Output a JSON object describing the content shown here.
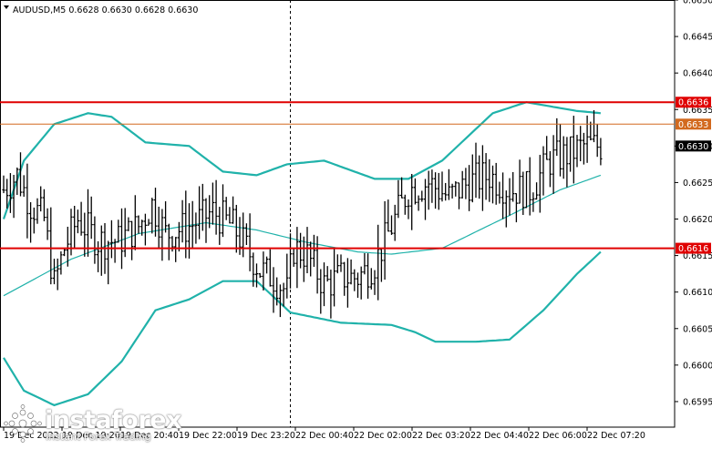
{
  "chart_data": {
    "type": "candlestick",
    "symbol_label": "AUDUSD,M5  0.6628 0.6630 0.6628 0.6630",
    "ylim": [
      0.65915,
      0.665
    ],
    "yticks": [
      "0.6650",
      "0.6645",
      "0.6640",
      "0.6635",
      "0.6630",
      "0.6625",
      "0.6620",
      "0.6615",
      "0.6610",
      "0.6605",
      "0.6600",
      "0.6595"
    ],
    "xticks": [
      "19 Dec 2022",
      "19 Dec 19:20",
      "19 Dec 20:40",
      "19 Dec 22:00",
      "19 Dec 23:20",
      "22 Dec 00:40",
      "22 Dec 02:00",
      "22 Dec 03:20",
      "22 Dec 04:40",
      "22 Dec 06:00",
      "22 Dec 07:20"
    ],
    "horizontal_levels": [
      {
        "value": 0.6636,
        "label": "0.6636",
        "color": "#e00000"
      },
      {
        "value": 0.6633,
        "label": "0.6633",
        "color": "#d2691e"
      },
      {
        "value": 0.6616,
        "label": "0.6616",
        "color": "#e00000"
      }
    ],
    "current_price": {
      "value": 0.663,
      "label": "0.6630"
    },
    "session_separator_bar": 85,
    "bars_count": 178,
    "price_path": [
      [
        0,
        0.6624
      ],
      [
        4,
        0.6626
      ],
      [
        8,
        0.6622
      ],
      [
        12,
        0.662
      ],
      [
        15,
        0.6611
      ],
      [
        18,
        0.6616
      ],
      [
        22,
        0.662
      ],
      [
        28,
        0.6617
      ],
      [
        34,
        0.6617
      ],
      [
        40,
        0.6619
      ],
      [
        44,
        0.6622
      ],
      [
        48,
        0.6618
      ],
      [
        55,
        0.6619
      ],
      [
        62,
        0.6621
      ],
      [
        68,
        0.6619
      ],
      [
        72,
        0.6616
      ],
      [
        76,
        0.6613
      ],
      [
        80,
        0.6612
      ],
      [
        84,
        0.661
      ],
      [
        86,
        0.6616
      ],
      [
        90,
        0.6615
      ],
      [
        95,
        0.6611
      ],
      [
        100,
        0.6612
      ],
      [
        105,
        0.6612
      ],
      [
        110,
        0.6614
      ],
      [
        116,
        0.662
      ],
      [
        120,
        0.6624
      ],
      [
        126,
        0.6625
      ],
      [
        132,
        0.6623
      ],
      [
        138,
        0.6625
      ],
      [
        144,
        0.6626
      ],
      [
        150,
        0.6624
      ],
      [
        156,
        0.6624
      ],
      [
        162,
        0.6628
      ],
      [
        168,
        0.6629
      ],
      [
        172,
        0.663
      ],
      [
        177,
        0.663
      ]
    ],
    "middle_band": [
      [
        0,
        0.66095
      ],
      [
        20,
        0.66145
      ],
      [
        40,
        0.6618
      ],
      [
        60,
        0.66195
      ],
      [
        75,
        0.66185
      ],
      [
        90,
        0.66168
      ],
      [
        105,
        0.66155
      ],
      [
        115,
        0.66152
      ],
      [
        130,
        0.6616
      ],
      [
        150,
        0.66205
      ],
      [
        165,
        0.6624
      ],
      [
        177,
        0.6626
      ]
    ],
    "upper_band": [
      [
        0,
        0.662
      ],
      [
        6,
        0.6628
      ],
      [
        15,
        0.6633
      ],
      [
        25,
        0.66345
      ],
      [
        32,
        0.6634
      ],
      [
        42,
        0.66305
      ],
      [
        55,
        0.663
      ],
      [
        65,
        0.66265
      ],
      [
        75,
        0.6626
      ],
      [
        84,
        0.66275
      ],
      [
        95,
        0.6628
      ],
      [
        110,
        0.66255
      ],
      [
        120,
        0.66255
      ],
      [
        130,
        0.6628
      ],
      [
        145,
        0.66345
      ],
      [
        155,
        0.6636
      ],
      [
        170,
        0.66348
      ],
      [
        177,
        0.66345
      ]
    ],
    "lower_band": [
      [
        0,
        0.6601
      ],
      [
        6,
        0.65965
      ],
      [
        15,
        0.65945
      ],
      [
        25,
        0.6596
      ],
      [
        35,
        0.66005
      ],
      [
        45,
        0.66075
      ],
      [
        55,
        0.6609
      ],
      [
        65,
        0.66115
      ],
      [
        75,
        0.66115
      ],
      [
        85,
        0.66072
      ],
      [
        100,
        0.66058
      ],
      [
        115,
        0.66055
      ],
      [
        122,
        0.66045
      ],
      [
        128,
        0.66032
      ],
      [
        140,
        0.66032
      ],
      [
        150,
        0.66035
      ],
      [
        160,
        0.66075
      ],
      [
        170,
        0.66125
      ],
      [
        177,
        0.66155
      ]
    ],
    "grid": false,
    "colors": {
      "bars": "#000000",
      "bands": "#20b2aa",
      "level_red": "#e00000",
      "level_orange": "#d2691e",
      "current": "#000000"
    }
  },
  "watermark": {
    "name": "instaforex",
    "tagline": "Instant Forex Trading"
  }
}
